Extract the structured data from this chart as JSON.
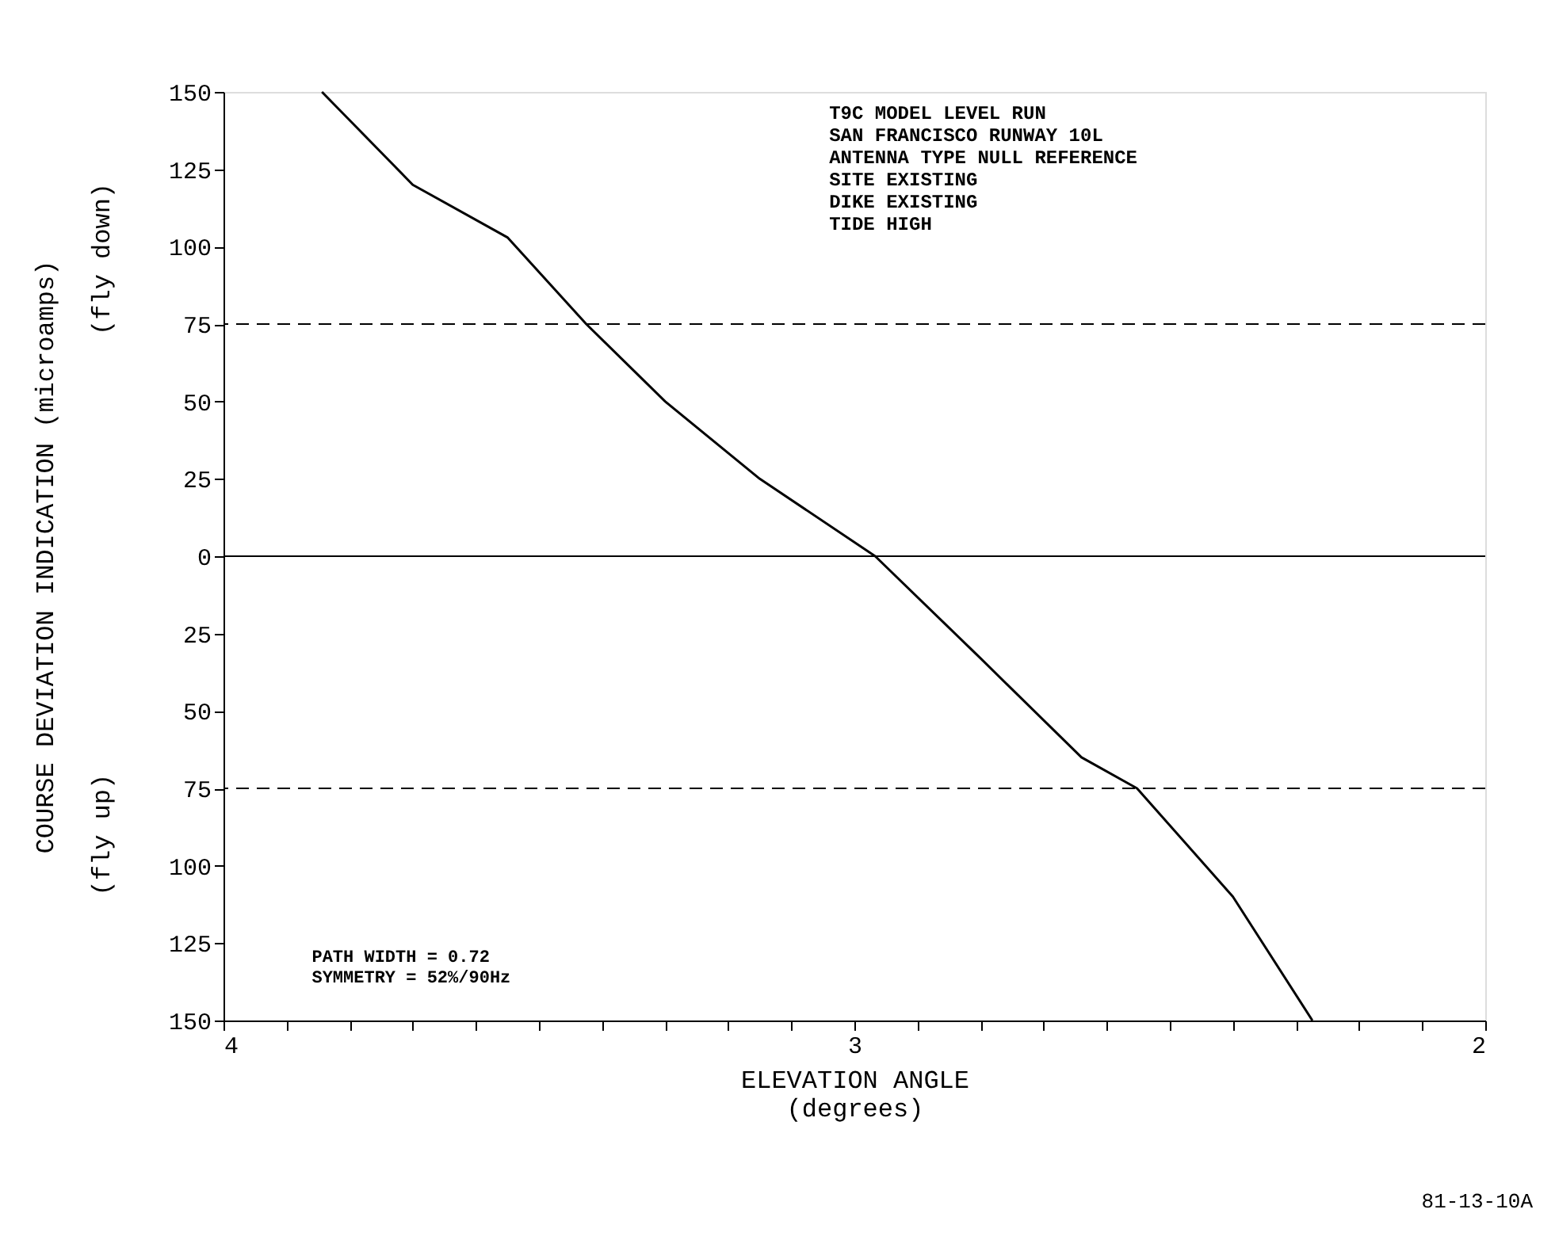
{
  "chart_data": {
    "type": "line",
    "xlabel": "ELEVATION ANGLE\n(degrees)",
    "ylabel": "COURSE DEVIATION INDICATION (microamps)",
    "x": [
      3.844,
      3.7,
      3.55,
      3.425,
      3.3,
      3.15,
      2.967,
      2.8,
      2.64,
      2.552,
      2.4,
      2.274
    ],
    "series": [
      {
        "color": "#000000",
        "values": [
          150,
          120,
          103,
          75,
          50,
          25,
          0,
          -33,
          -65,
          -75,
          -110,
          -150
        ]
      }
    ],
    "xlim": [
      4,
      2
    ],
    "xticks": [
      4,
      {
        "value": 3.9,
        "label": null
      },
      {
        "value": 3.8,
        "label": null
      },
      {
        "value": 3.7,
        "label": null
      },
      {
        "value": 3.6,
        "label": null
      },
      {
        "value": 3.5,
        "label": null
      },
      {
        "value": 3.4,
        "label": null
      },
      {
        "value": 3.3,
        "label": null
      },
      {
        "value": 3.2,
        "label": null
      },
      {
        "value": 3.1,
        "label": null
      },
      3,
      {
        "value": 2.9,
        "label": null
      },
      {
        "value": 2.8,
        "label": null
      },
      {
        "value": 2.7,
        "label": null
      },
      {
        "value": 2.6,
        "label": null
      },
      {
        "value": 2.5,
        "label": null
      },
      {
        "value": 2.4,
        "label": null
      },
      {
        "value": 2.3,
        "label": null
      },
      {
        "value": 2.2,
        "label": null
      },
      {
        "value": 2.1,
        "label": null
      },
      2
    ],
    "ylim": [
      -150,
      150
    ],
    "yticks": [
      {
        "value": -150,
        "label": "150"
      },
      {
        "value": -125,
        "label": "125"
      },
      {
        "value": -100,
        "label": "100"
      },
      {
        "value": -75,
        "label": "75"
      },
      {
        "value": -50,
        "label": "50"
      },
      {
        "value": -25,
        "label": "25"
      },
      0,
      25,
      50,
      75,
      100,
      125,
      150
    ],
    "ref_lines": [
      {
        "axis": "y",
        "value": 75,
        "line_style": "dashed",
        "color": "#000000"
      },
      {
        "axis": "y",
        "value": 0,
        "line_style": "solid",
        "color": "#000000"
      },
      {
        "axis": "y",
        "value": -75,
        "line_style": "dashed",
        "color": "#000000"
      }
    ],
    "annotations": [
      "T9C MODEL LEVEL RUN\nSAN FRANCISCO RUNWAY 10L\nANTENNA TYPE NULL REFERENCE\nSITE EXISTING\nDIKE EXISTING\nTIDE HIGH",
      "PATH WIDTH = 0.72\nSYMMETRY = 52%/90Hz",
      "(fly down)",
      "(fly up)",
      "81-13-10A"
    ],
    "grid": false,
    "line_style": "solid",
    "marker": "none"
  }
}
